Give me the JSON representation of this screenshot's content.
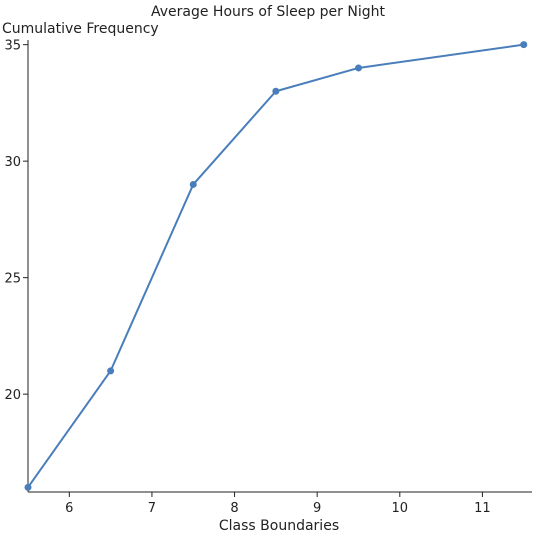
{
  "chart_data": {
    "type": "line",
    "title": "Average Hours of Sleep per Night",
    "xlabel": "Class Boundaries",
    "ylabel": "Cumulative Frequency",
    "x": [
      5.5,
      6.5,
      7.5,
      8.5,
      9.5,
      11.5
    ],
    "y": [
      16,
      21,
      29,
      33,
      34,
      35
    ],
    "xlim": [
      5.5,
      11.6
    ],
    "ylim": [
      15.8,
      35.2
    ],
    "xticks": [
      6,
      7,
      8,
      9,
      10,
      11
    ],
    "yticks": [
      20,
      25,
      30,
      35
    ],
    "grid": false,
    "colors": {
      "line": "#4a7ebb",
      "axis": "#222222"
    }
  }
}
